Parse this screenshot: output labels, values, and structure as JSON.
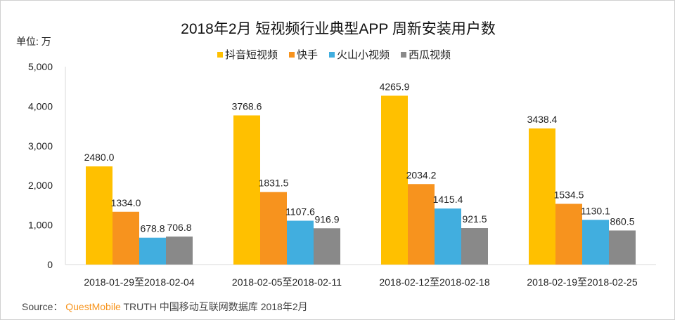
{
  "chart_data": {
    "type": "bar",
    "title": "2018年2月 短视频行业典型APP 周新安装用户数",
    "unit_label": "单位: 万",
    "categories": [
      "2018-01-29至2018-02-04",
      "2018-02-05至2018-02-11",
      "2018-02-12至2018-02-18",
      "2018-02-19至2018-02-25"
    ],
    "series": [
      {
        "name": "抖音短视频",
        "color": "#ffc000",
        "values": [
          2480.0,
          3768.6,
          4265.9,
          3438.4
        ]
      },
      {
        "name": "快手",
        "color": "#f7931e",
        "values": [
          1334.0,
          1831.5,
          2034.2,
          1534.5
        ]
      },
      {
        "name": "火山小视频",
        "color": "#41aedf",
        "values": [
          678.8,
          1107.6,
          1415.4,
          1130.1
        ]
      },
      {
        "name": "西瓜视频",
        "color": "#898989",
        "values": [
          706.8,
          916.9,
          921.5,
          860.5
        ]
      }
    ],
    "ylim": [
      0,
      5000
    ],
    "yticks": [
      "0",
      "1,000",
      "2,000",
      "3,000",
      "4,000",
      "5,000"
    ],
    "grid": false,
    "legend": "top"
  },
  "source": {
    "prefix": "Source：",
    "brand": "QuestMobile",
    "rest": " TRUTH 中国移动互联网数据库 2018年2月"
  }
}
